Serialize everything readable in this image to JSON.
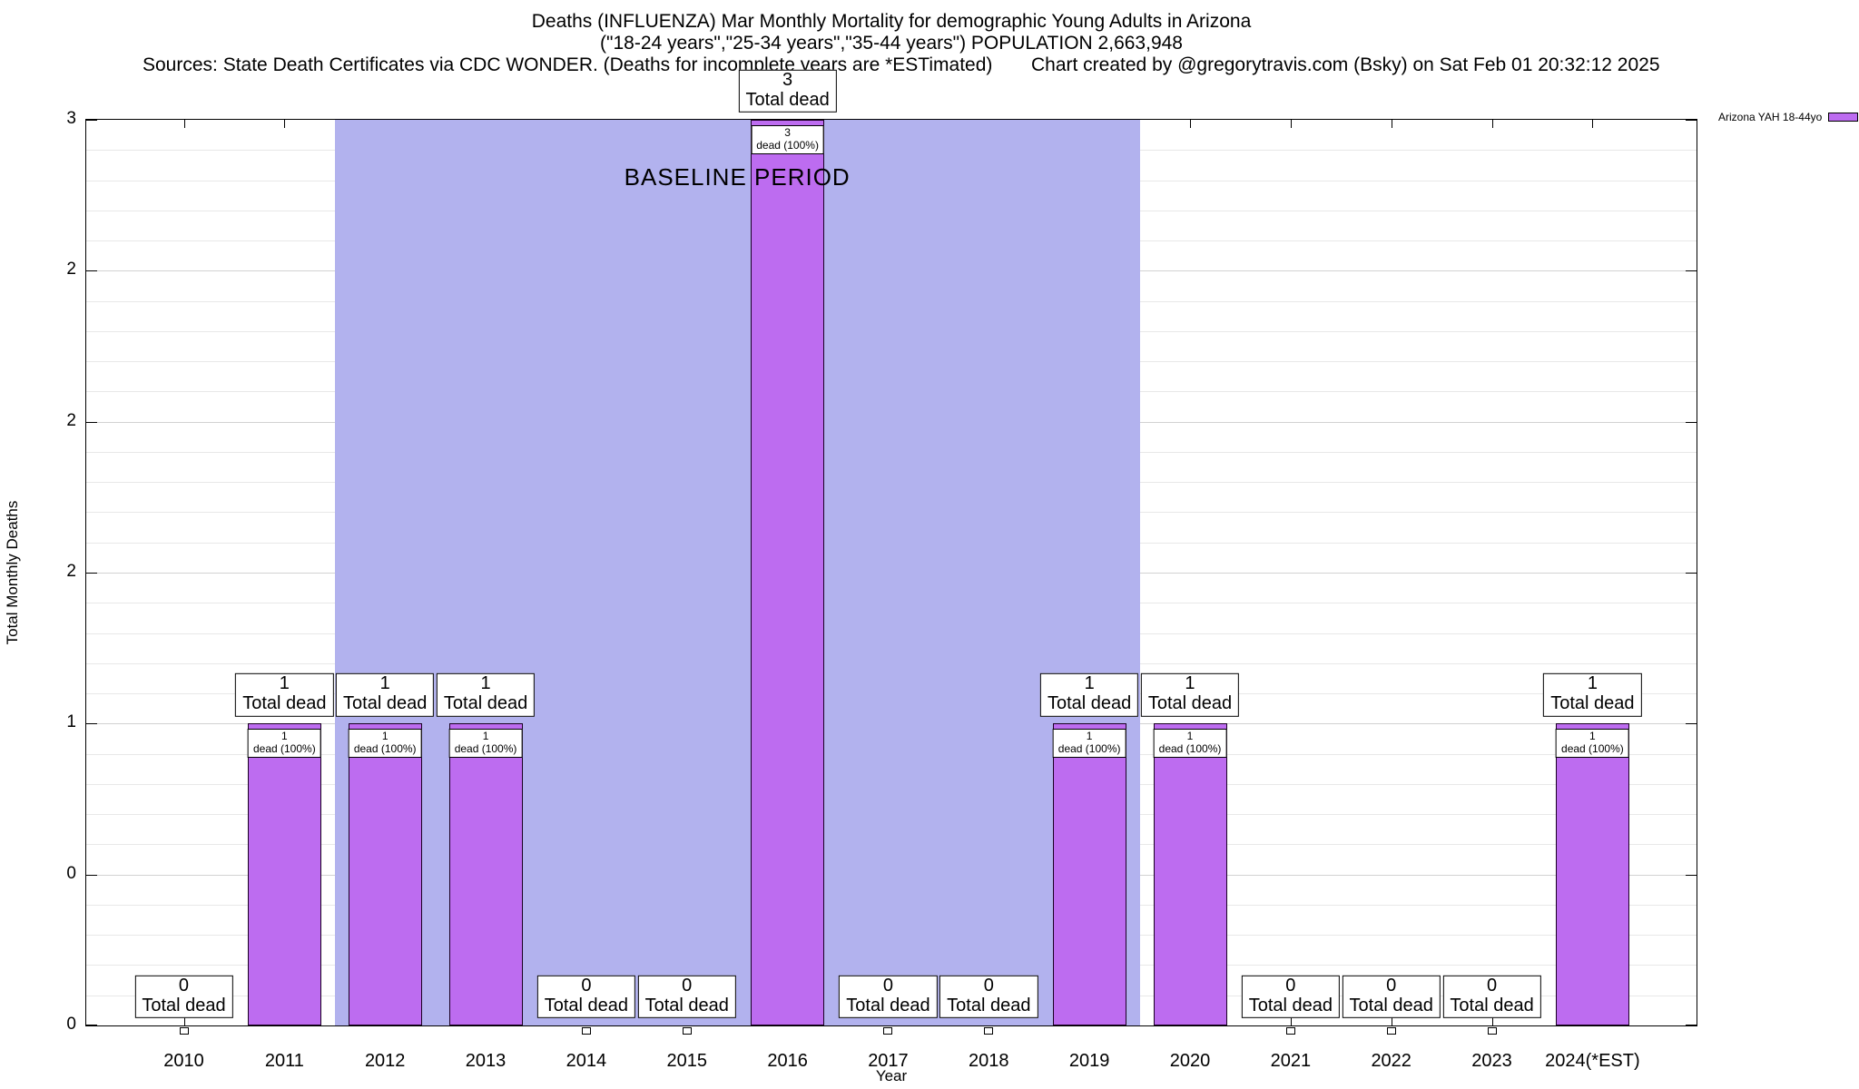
{
  "title": {
    "line1": "Deaths (INFLUENZA) Mar Monthly Mortality for demographic Young Adults in Arizona",
    "line2": "(\"18-24 years\",\"25-34 years\",\"35-44 years\") POPULATION 2,663,948",
    "sources": "Sources: State Death Certificates via CDC WONDER. (Deaths for incomplete years are *ESTimated)",
    "credit": "Chart created by @gregorytravis.com (Bsky) on Sat Feb 01 20:32:12 2025"
  },
  "chart_data": {
    "type": "bar",
    "title": "Deaths (INFLUENZA) Mar Monthly Mortality for demographic Young Adults in Arizona",
    "categories": [
      "2010",
      "2011",
      "2012",
      "2013",
      "2014",
      "2015",
      "2016",
      "2017",
      "2018",
      "2019",
      "2020",
      "2021",
      "2022",
      "2023",
      "2024(*EST)"
    ],
    "values": [
      0,
      1,
      1,
      1,
      0,
      0,
      3,
      0,
      0,
      1,
      1,
      0,
      0,
      0,
      1
    ],
    "xlabel": "Year",
    "ylabel": "Total Monthly Deaths",
    "ylim": [
      0,
      3
    ],
    "yticks": [
      {
        "value": 3,
        "label": "3"
      },
      {
        "value": 2.5,
        "label": "2"
      },
      {
        "value": 2,
        "label": "2"
      },
      {
        "value": 1.5,
        "label": "2"
      },
      {
        "value": 1,
        "label": "1"
      },
      {
        "value": 0.5,
        "label": "0"
      },
      {
        "value": 0,
        "label": "0"
      }
    ],
    "grid": true,
    "legend_position": "top-right",
    "total_label": "Total dead",
    "inner_label": "dead (100%)",
    "baseline_region": {
      "label": "BASELINE PERIOD",
      "x_start_index": 1.5,
      "x_end_index": 9.5,
      "color": "#b2b2ee"
    },
    "bar_color": "#bd6cf0",
    "legend": {
      "label": "Arizona YAH 18-44yo",
      "swatch_color": "#bd6cf0"
    }
  }
}
